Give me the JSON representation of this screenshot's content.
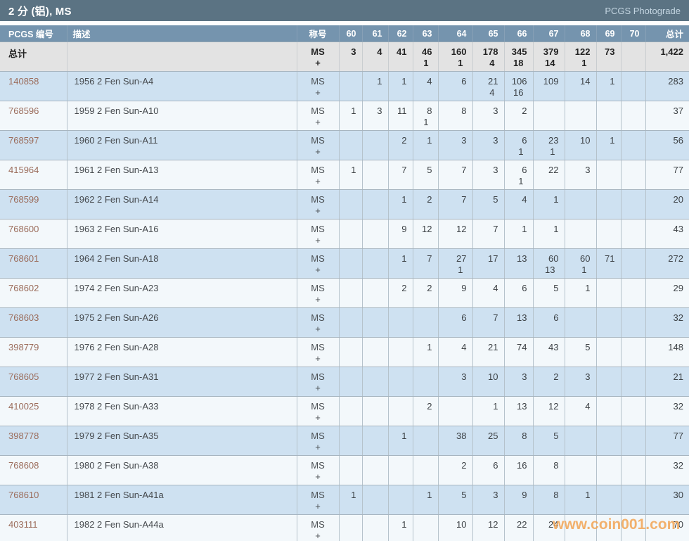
{
  "header": {
    "title": "2 分 (铝), MS",
    "photograde_link": "PCGS Photograde"
  },
  "table": {
    "columns": [
      "PCGS 编号",
      "描述",
      "称号",
      "60",
      "61",
      "62",
      "63",
      "64",
      "65",
      "66",
      "67",
      "68",
      "69",
      "70",
      "总计"
    ],
    "designation_lines": [
      "MS",
      "+"
    ],
    "totals": {
      "label": "总计",
      "grades": [
        [
          "3",
          ""
        ],
        [
          "4",
          ""
        ],
        [
          "41",
          ""
        ],
        [
          "46",
          "1"
        ],
        [
          "160",
          "1"
        ],
        [
          "178",
          "4"
        ],
        [
          "345",
          "18"
        ],
        [
          "379",
          "14"
        ],
        [
          "122",
          "1"
        ],
        [
          "73",
          ""
        ],
        [
          "",
          ""
        ]
      ],
      "total": "1,422"
    },
    "rows": [
      {
        "pcgs_no": "140858",
        "description": "1956 2 Fen Sun-A4",
        "grades": [
          [
            "",
            ""
          ],
          [
            "1",
            ""
          ],
          [
            "1",
            ""
          ],
          [
            "4",
            ""
          ],
          [
            "6",
            ""
          ],
          [
            "21",
            "4"
          ],
          [
            "106",
            "16"
          ],
          [
            "109",
            ""
          ],
          [
            "14",
            ""
          ],
          [
            "1",
            ""
          ],
          [
            "",
            ""
          ]
        ],
        "total": "283"
      },
      {
        "pcgs_no": "768596",
        "description": "1959 2 Fen Sun-A10",
        "grades": [
          [
            "1",
            ""
          ],
          [
            "3",
            ""
          ],
          [
            "11",
            ""
          ],
          [
            "8",
            "1"
          ],
          [
            "8",
            ""
          ],
          [
            "3",
            ""
          ],
          [
            "2",
            ""
          ],
          [
            "",
            ""
          ],
          [
            "",
            ""
          ],
          [
            "",
            ""
          ],
          [
            "",
            ""
          ]
        ],
        "total": "37"
      },
      {
        "pcgs_no": "768597",
        "description": "1960 2 Fen Sun-A11",
        "grades": [
          [
            "",
            ""
          ],
          [
            "",
            ""
          ],
          [
            "2",
            ""
          ],
          [
            "1",
            ""
          ],
          [
            "3",
            ""
          ],
          [
            "3",
            ""
          ],
          [
            "6",
            "1"
          ],
          [
            "23",
            "1"
          ],
          [
            "10",
            ""
          ],
          [
            "1",
            ""
          ],
          [
            "",
            ""
          ]
        ],
        "total": "56"
      },
      {
        "pcgs_no": "415964",
        "description": "1961 2 Fen Sun-A13",
        "grades": [
          [
            "1",
            ""
          ],
          [
            "",
            ""
          ],
          [
            "7",
            ""
          ],
          [
            "5",
            ""
          ],
          [
            "7",
            ""
          ],
          [
            "3",
            ""
          ],
          [
            "6",
            "1"
          ],
          [
            "22",
            ""
          ],
          [
            "3",
            ""
          ],
          [
            "",
            ""
          ],
          [
            "",
            ""
          ]
        ],
        "total": "77"
      },
      {
        "pcgs_no": "768599",
        "description": "1962 2 Fen Sun-A14",
        "grades": [
          [
            "",
            ""
          ],
          [
            "",
            ""
          ],
          [
            "1",
            ""
          ],
          [
            "2",
            ""
          ],
          [
            "7",
            ""
          ],
          [
            "5",
            ""
          ],
          [
            "4",
            ""
          ],
          [
            "1",
            ""
          ],
          [
            "",
            ""
          ],
          [
            "",
            ""
          ],
          [
            "",
            ""
          ]
        ],
        "total": "20"
      },
      {
        "pcgs_no": "768600",
        "description": "1963 2 Fen Sun-A16",
        "grades": [
          [
            "",
            ""
          ],
          [
            "",
            ""
          ],
          [
            "9",
            ""
          ],
          [
            "12",
            ""
          ],
          [
            "12",
            ""
          ],
          [
            "7",
            ""
          ],
          [
            "1",
            ""
          ],
          [
            "1",
            ""
          ],
          [
            "",
            ""
          ],
          [
            "",
            ""
          ],
          [
            "",
            ""
          ]
        ],
        "total": "43"
      },
      {
        "pcgs_no": "768601",
        "description": "1964 2 Fen Sun-A18",
        "grades": [
          [
            "",
            ""
          ],
          [
            "",
            ""
          ],
          [
            "1",
            ""
          ],
          [
            "7",
            ""
          ],
          [
            "27",
            "1"
          ],
          [
            "17",
            ""
          ],
          [
            "13",
            ""
          ],
          [
            "60",
            "13"
          ],
          [
            "60",
            "1"
          ],
          [
            "71",
            ""
          ],
          [
            "",
            ""
          ]
        ],
        "total": "272"
      },
      {
        "pcgs_no": "768602",
        "description": "1974 2 Fen Sun-A23",
        "grades": [
          [
            "",
            ""
          ],
          [
            "",
            ""
          ],
          [
            "2",
            ""
          ],
          [
            "2",
            ""
          ],
          [
            "9",
            ""
          ],
          [
            "4",
            ""
          ],
          [
            "6",
            ""
          ],
          [
            "5",
            ""
          ],
          [
            "1",
            ""
          ],
          [
            "",
            ""
          ],
          [
            "",
            ""
          ]
        ],
        "total": "29"
      },
      {
        "pcgs_no": "768603",
        "description": "1975 2 Fen Sun-A26",
        "grades": [
          [
            "",
            ""
          ],
          [
            "",
            ""
          ],
          [
            "",
            ""
          ],
          [
            "",
            ""
          ],
          [
            "6",
            ""
          ],
          [
            "7",
            ""
          ],
          [
            "13",
            ""
          ],
          [
            "6",
            ""
          ],
          [
            "",
            ""
          ],
          [
            "",
            ""
          ],
          [
            "",
            ""
          ]
        ],
        "total": "32"
      },
      {
        "pcgs_no": "398779",
        "description": "1976 2 Fen Sun-A28",
        "grades": [
          [
            "",
            ""
          ],
          [
            "",
            ""
          ],
          [
            "",
            ""
          ],
          [
            "1",
            ""
          ],
          [
            "4",
            ""
          ],
          [
            "21",
            ""
          ],
          [
            "74",
            ""
          ],
          [
            "43",
            ""
          ],
          [
            "5",
            ""
          ],
          [
            "",
            ""
          ],
          [
            "",
            ""
          ]
        ],
        "total": "148"
      },
      {
        "pcgs_no": "768605",
        "description": "1977 2 Fen Sun-A31",
        "grades": [
          [
            "",
            ""
          ],
          [
            "",
            ""
          ],
          [
            "",
            ""
          ],
          [
            "",
            ""
          ],
          [
            "3",
            ""
          ],
          [
            "10",
            ""
          ],
          [
            "3",
            ""
          ],
          [
            "2",
            ""
          ],
          [
            "3",
            ""
          ],
          [
            "",
            ""
          ],
          [
            "",
            ""
          ]
        ],
        "total": "21"
      },
      {
        "pcgs_no": "410025",
        "description": "1978 2 Fen Sun-A33",
        "grades": [
          [
            "",
            ""
          ],
          [
            "",
            ""
          ],
          [
            "",
            ""
          ],
          [
            "2",
            ""
          ],
          [
            "",
            ""
          ],
          [
            "1",
            ""
          ],
          [
            "13",
            ""
          ],
          [
            "12",
            ""
          ],
          [
            "4",
            ""
          ],
          [
            "",
            ""
          ],
          [
            "",
            ""
          ]
        ],
        "total": "32"
      },
      {
        "pcgs_no": "398778",
        "description": "1979 2 Fen Sun-A35",
        "grades": [
          [
            "",
            ""
          ],
          [
            "",
            ""
          ],
          [
            "1",
            ""
          ],
          [
            "",
            ""
          ],
          [
            "38",
            ""
          ],
          [
            "25",
            ""
          ],
          [
            "8",
            ""
          ],
          [
            "5",
            ""
          ],
          [
            "",
            ""
          ],
          [
            "",
            ""
          ],
          [
            "",
            ""
          ]
        ],
        "total": "77"
      },
      {
        "pcgs_no": "768608",
        "description": "1980 2 Fen Sun-A38",
        "grades": [
          [
            "",
            ""
          ],
          [
            "",
            ""
          ],
          [
            "",
            ""
          ],
          [
            "",
            ""
          ],
          [
            "2",
            ""
          ],
          [
            "6",
            ""
          ],
          [
            "16",
            ""
          ],
          [
            "8",
            ""
          ],
          [
            "",
            ""
          ],
          [
            "",
            ""
          ],
          [
            "",
            ""
          ]
        ],
        "total": "32"
      },
      {
        "pcgs_no": "768610",
        "description": "1981 2 Fen Sun-A41a",
        "grades": [
          [
            "1",
            ""
          ],
          [
            "",
            ""
          ],
          [
            "",
            ""
          ],
          [
            "1",
            ""
          ],
          [
            "5",
            ""
          ],
          [
            "3",
            ""
          ],
          [
            "9",
            ""
          ],
          [
            "8",
            ""
          ],
          [
            "1",
            ""
          ],
          [
            "",
            ""
          ],
          [
            "",
            ""
          ]
        ],
        "total": "30"
      },
      {
        "pcgs_no": "403111",
        "description": "1982 2 Fen Sun-A44a",
        "grades": [
          [
            "",
            ""
          ],
          [
            "",
            ""
          ],
          [
            "1",
            ""
          ],
          [
            "",
            ""
          ],
          [
            "10",
            ""
          ],
          [
            "12",
            ""
          ],
          [
            "22",
            ""
          ],
          [
            "24",
            ""
          ],
          [
            "",
            ""
          ],
          [
            "",
            ""
          ],
          [
            "",
            ""
          ]
        ],
        "total": "70"
      }
    ]
  },
  "watermark": "www.coin001.com"
}
